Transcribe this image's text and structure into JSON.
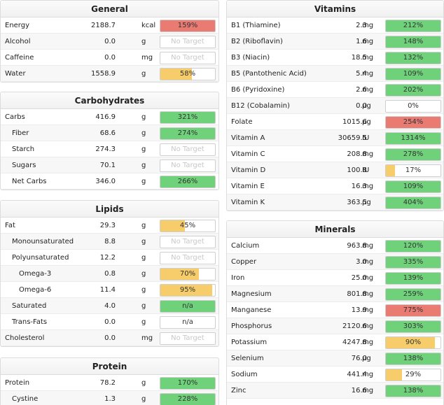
{
  "colors": {
    "green": "#6fd27a",
    "red": "#e97b73",
    "yellow": "#f6cd6a"
  },
  "general": {
    "title": "General",
    "rows": [
      {
        "name": "Energy",
        "amount": "2188.7",
        "unit": "kcal",
        "pct": "159%",
        "status": "red",
        "fill": 1.0
      },
      {
        "name": "Alcohol",
        "amount": "0.0",
        "unit": "g",
        "pct": "No Target",
        "status": "none",
        "fill": 0
      },
      {
        "name": "Caffeine",
        "amount": "0.0",
        "unit": "mg",
        "pct": "No Target",
        "status": "none",
        "fill": 0
      },
      {
        "name": "Water",
        "amount": "1558.9",
        "unit": "g",
        "pct": "58%",
        "status": "yellow",
        "fill": 0.58
      }
    ]
  },
  "carbohydrates": {
    "title": "Carbohydrates",
    "rows": [
      {
        "name": "Carbs",
        "amount": "416.9",
        "unit": "g",
        "pct": "321%",
        "status": "green",
        "fill": 1.0,
        "indent": 0
      },
      {
        "name": "Fiber",
        "amount": "68.6",
        "unit": "g",
        "pct": "274%",
        "status": "green",
        "fill": 1.0,
        "indent": 1
      },
      {
        "name": "Starch",
        "amount": "274.3",
        "unit": "g",
        "pct": "No Target",
        "status": "none",
        "fill": 0,
        "indent": 1
      },
      {
        "name": "Sugars",
        "amount": "70.1",
        "unit": "g",
        "pct": "No Target",
        "status": "none",
        "fill": 0,
        "indent": 1
      },
      {
        "name": "Net Carbs",
        "amount": "346.0",
        "unit": "g",
        "pct": "266%",
        "status": "green",
        "fill": 1.0,
        "indent": 1
      }
    ]
  },
  "lipids": {
    "title": "Lipids",
    "rows": [
      {
        "name": "Fat",
        "amount": "29.3",
        "unit": "g",
        "pct": "45%",
        "status": "yellow",
        "fill": 0.45,
        "indent": 0
      },
      {
        "name": "Monounsaturated",
        "amount": "8.8",
        "unit": "g",
        "pct": "No Target",
        "status": "none",
        "fill": 0,
        "indent": 1
      },
      {
        "name": "Polyunsaturated",
        "amount": "12.2",
        "unit": "g",
        "pct": "No Target",
        "status": "none",
        "fill": 0,
        "indent": 1
      },
      {
        "name": "Omega-3",
        "amount": "0.8",
        "unit": "g",
        "pct": "70%",
        "status": "yellow",
        "fill": 0.7,
        "indent": 2
      },
      {
        "name": "Omega-6",
        "amount": "11.4",
        "unit": "g",
        "pct": "95%",
        "status": "yellow",
        "fill": 0.95,
        "indent": 2
      },
      {
        "name": "Saturated",
        "amount": "4.0",
        "unit": "g",
        "pct": "n/a",
        "status": "green",
        "fill": 1.0,
        "indent": 1
      },
      {
        "name": "Trans-Fats",
        "amount": "0.0",
        "unit": "g",
        "pct": "n/a",
        "status": "blank",
        "fill": 0,
        "indent": 1
      },
      {
        "name": "Cholesterol",
        "amount": "0.0",
        "unit": "mg",
        "pct": "No Target",
        "status": "none",
        "fill": 0,
        "indent": 0
      }
    ]
  },
  "protein": {
    "title": "Protein",
    "rows": [
      {
        "name": "Protein",
        "amount": "78.2",
        "unit": "g",
        "pct": "170%",
        "status": "green",
        "fill": 1.0,
        "indent": 0
      },
      {
        "name": "Cystine",
        "amount": "1.3",
        "unit": "g",
        "pct": "228%",
        "status": "green",
        "fill": 1.0,
        "indent": 1
      }
    ]
  },
  "vitamins": {
    "title": "Vitamins",
    "rows": [
      {
        "name": "B1 (Thiamine)",
        "amount": "2.3",
        "unit": "mg",
        "pct": "212%",
        "status": "green",
        "fill": 1.0
      },
      {
        "name": "B2 (Riboflavin)",
        "amount": "1.6",
        "unit": "mg",
        "pct": "148%",
        "status": "green",
        "fill": 1.0
      },
      {
        "name": "B3 (Niacin)",
        "amount": "18.5",
        "unit": "mg",
        "pct": "132%",
        "status": "green",
        "fill": 1.0
      },
      {
        "name": "B5 (Pantothenic Acid)",
        "amount": "5.4",
        "unit": "mg",
        "pct": "109%",
        "status": "green",
        "fill": 1.0
      },
      {
        "name": "B6 (Pyridoxine)",
        "amount": "2.6",
        "unit": "mg",
        "pct": "202%",
        "status": "green",
        "fill": 1.0
      },
      {
        "name": "B12 (Cobalamin)",
        "amount": "0.0",
        "unit": "µg",
        "pct": "0%",
        "status": "blank",
        "fill": 0
      },
      {
        "name": "Folate",
        "amount": "1015.6",
        "unit": "µg",
        "pct": "254%",
        "status": "red",
        "fill": 1.0
      },
      {
        "name": "Vitamin A",
        "amount": "30659.5",
        "unit": "IU",
        "pct": "1314%",
        "status": "green",
        "fill": 1.0
      },
      {
        "name": "Vitamin C",
        "amount": "208.8",
        "unit": "mg",
        "pct": "278%",
        "status": "green",
        "fill": 1.0
      },
      {
        "name": "Vitamin D",
        "amount": "100.8",
        "unit": "IU",
        "pct": "17%",
        "status": "yellow",
        "fill": 0.17
      },
      {
        "name": "Vitamin E",
        "amount": "16.3",
        "unit": "mg",
        "pct": "109%",
        "status": "green",
        "fill": 1.0
      },
      {
        "name": "Vitamin K",
        "amount": "363.5",
        "unit": "µg",
        "pct": "404%",
        "status": "green",
        "fill": 1.0
      }
    ]
  },
  "minerals": {
    "title": "Minerals",
    "rows": [
      {
        "name": "Calcium",
        "amount": "963.8",
        "unit": "mg",
        "pct": "120%",
        "status": "green",
        "fill": 1.0
      },
      {
        "name": "Copper",
        "amount": "3.0",
        "unit": "mg",
        "pct": "335%",
        "status": "green",
        "fill": 1.0
      },
      {
        "name": "Iron",
        "amount": "25.0",
        "unit": "mg",
        "pct": "139%",
        "status": "green",
        "fill": 1.0
      },
      {
        "name": "Magnesium",
        "amount": "801.8",
        "unit": "mg",
        "pct": "259%",
        "status": "green",
        "fill": 1.0
      },
      {
        "name": "Manganese",
        "amount": "13.9",
        "unit": "mg",
        "pct": "775%",
        "status": "red",
        "fill": 1.0
      },
      {
        "name": "Phosphorus",
        "amount": "2120.6",
        "unit": "mg",
        "pct": "303%",
        "status": "green",
        "fill": 1.0
      },
      {
        "name": "Potassium",
        "amount": "4247.8",
        "unit": "mg",
        "pct": "90%",
        "status": "yellow",
        "fill": 0.9
      },
      {
        "name": "Selenium",
        "amount": "76.0",
        "unit": "µg",
        "pct": "138%",
        "status": "green",
        "fill": 1.0
      },
      {
        "name": "Sodium",
        "amount": "441.4",
        "unit": "mg",
        "pct": "29%",
        "status": "yellow",
        "fill": 0.29
      },
      {
        "name": "Zinc",
        "amount": "16.6",
        "unit": "mg",
        "pct": "138%",
        "status": "green",
        "fill": 1.0
      }
    ]
  }
}
